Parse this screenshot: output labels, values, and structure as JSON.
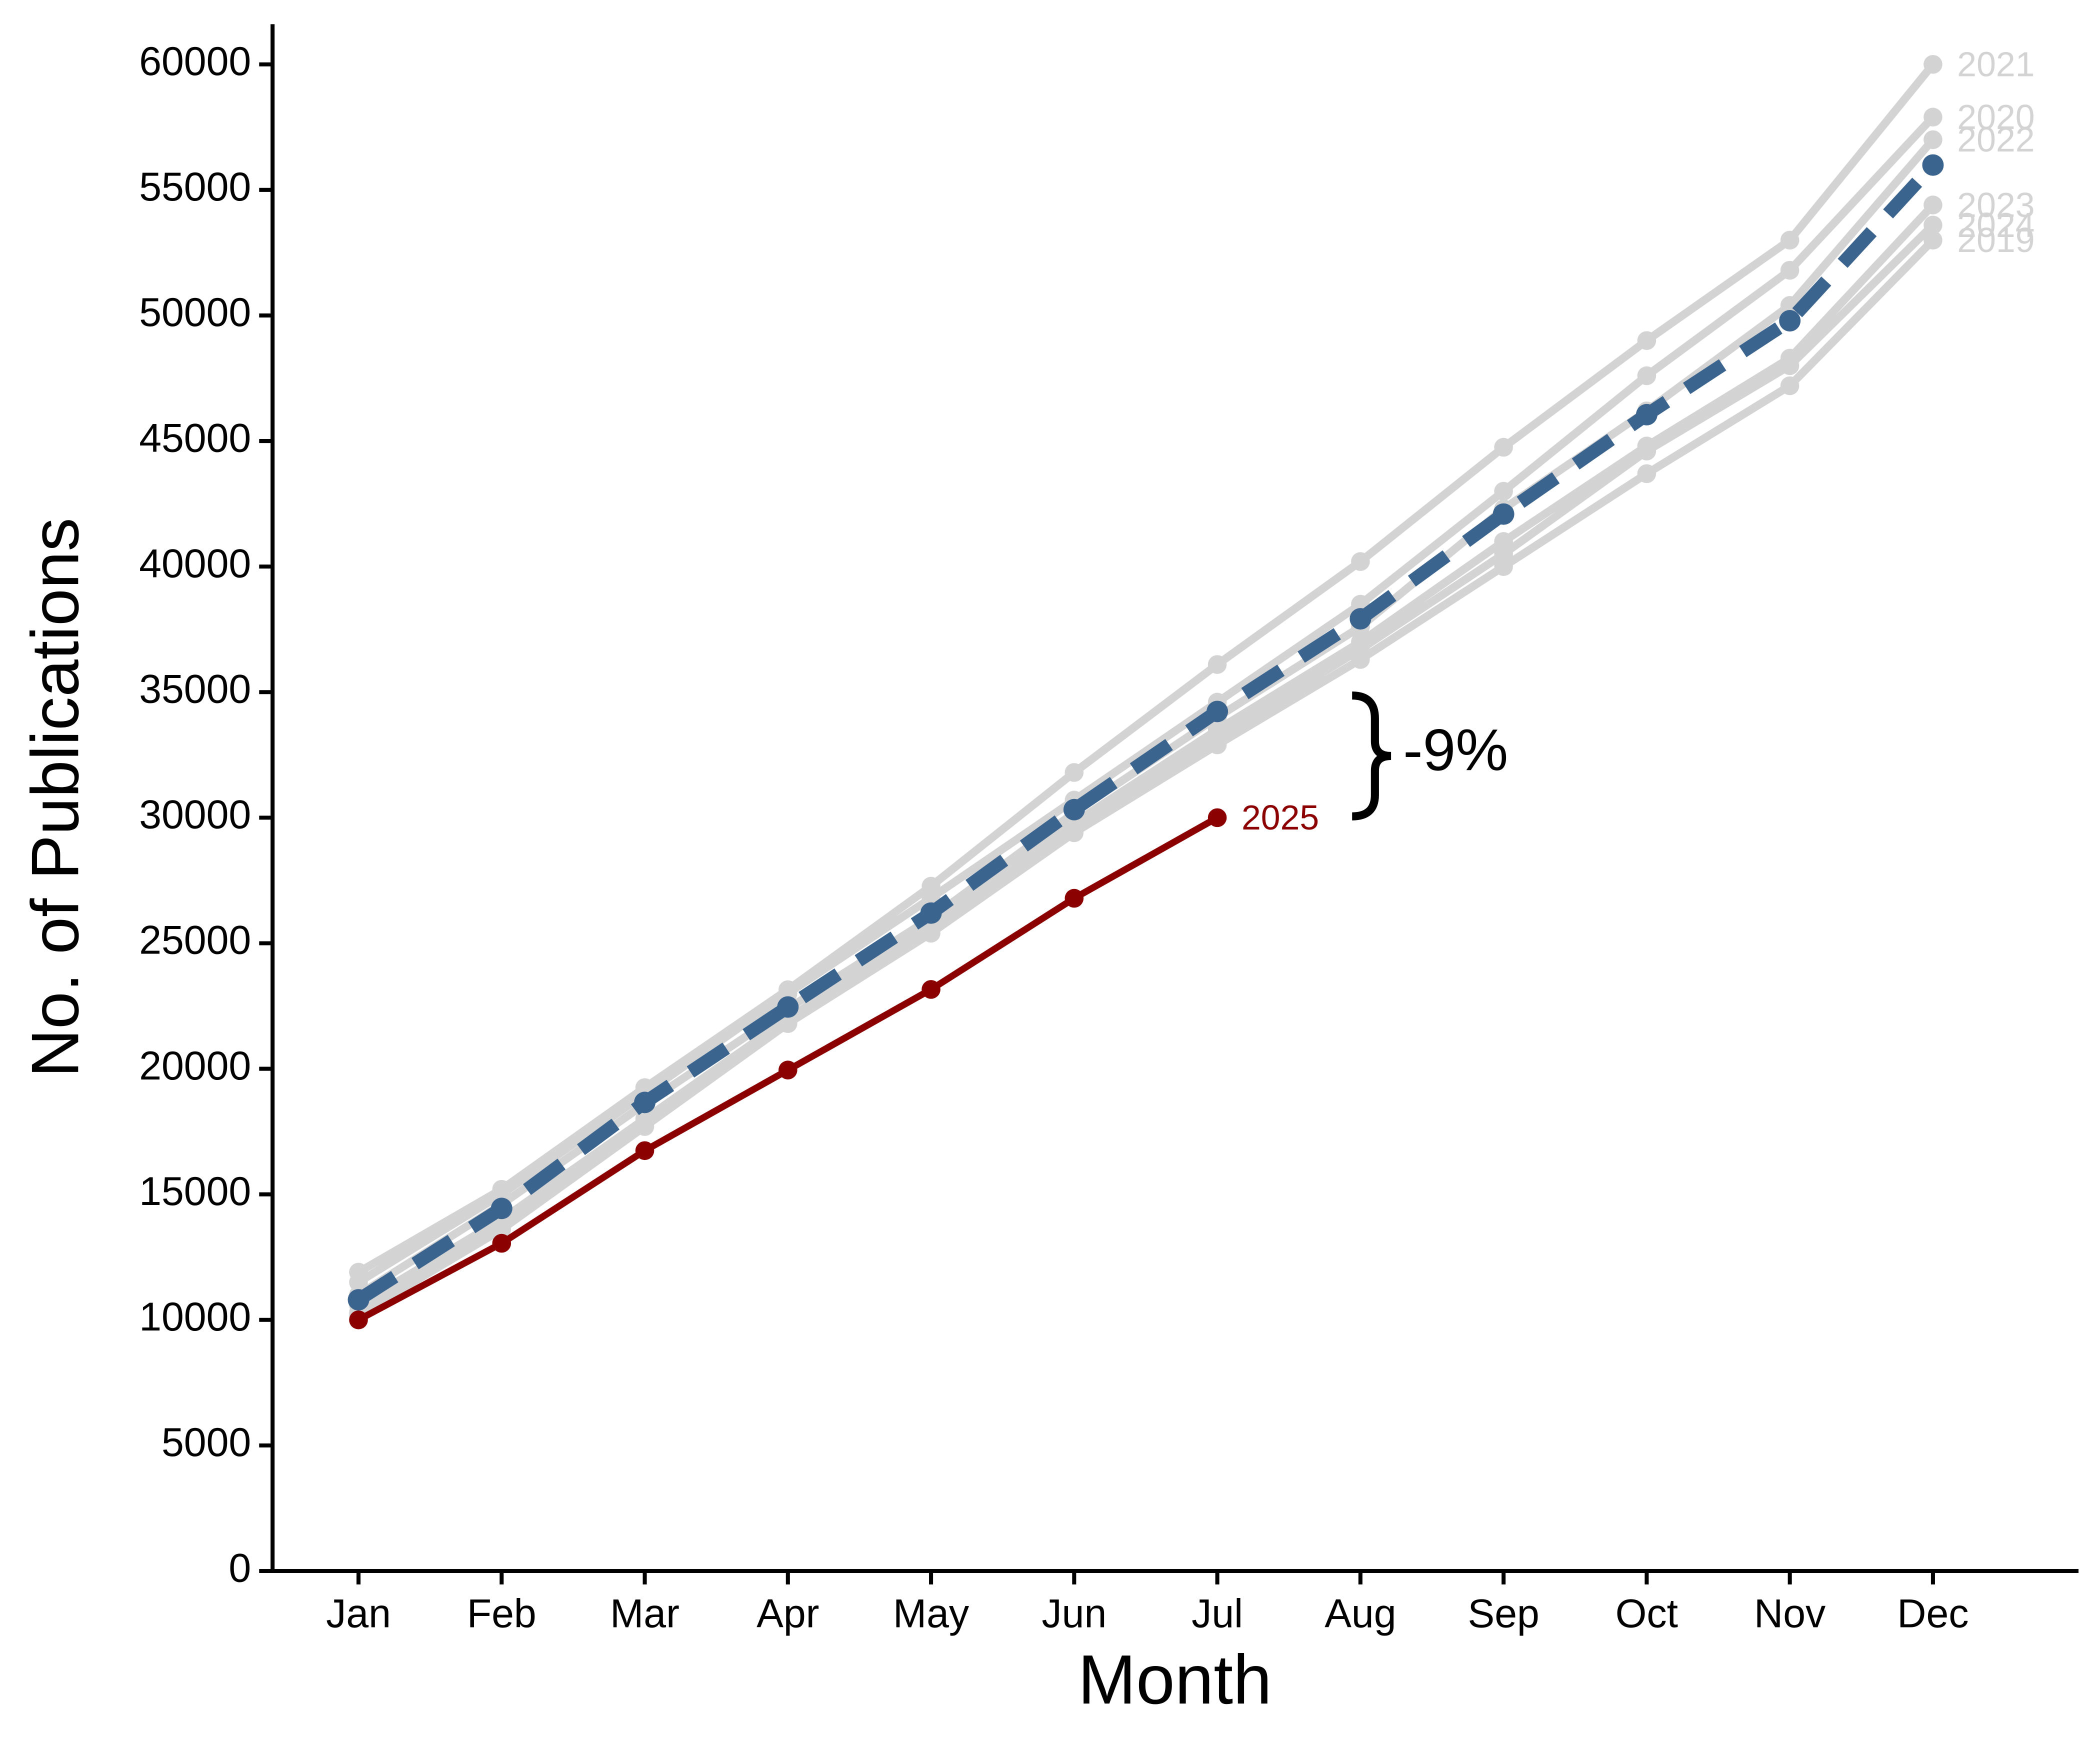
{
  "chart_data": {
    "type": "line",
    "x_label": "Month",
    "y_label": "No. of Publications",
    "annotation": "-9%",
    "categories": [
      "Jan",
      "Feb",
      "Mar",
      "Apr",
      "May",
      "Jun",
      "Jul",
      "Aug",
      "Sep",
      "Oct",
      "Nov",
      "Dec"
    ],
    "ylim": [
      0,
      61600
    ],
    "yticks": [
      0,
      5000,
      10000,
      15000,
      20000,
      25000,
      30000,
      35000,
      40000,
      45000,
      50000,
      55000,
      60000
    ],
    "series": [
      {
        "name": "2019",
        "color": "#d3d3d3",
        "values": [
          10200,
          13600,
          17700,
          21800,
          25400,
          29400,
          32900,
          36300,
          40000,
          43700,
          47200,
          53000
        ]
      },
      {
        "name": "2020",
        "color": "#d3d3d3",
        "values": [
          11500,
          15000,
          19000,
          23000,
          26800,
          30700,
          34600,
          38500,
          43000,
          47600,
          51800,
          57900
        ]
      },
      {
        "name": "2021",
        "color": "#d3d3d3",
        "values": [
          11900,
          15200,
          19250,
          23150,
          27270,
          31800,
          36100,
          40200,
          44750,
          49000,
          53000,
          60000
        ]
      },
      {
        "name": "2022",
        "color": "#d3d3d3",
        "values": [
          11000,
          14600,
          18600,
          22400,
          26000,
          30200,
          34000,
          37600,
          42300,
          46200,
          50400,
          57000
        ]
      },
      {
        "name": "2023",
        "color": "#d3d3d3",
        "values": [
          10600,
          14000,
          18000,
          22000,
          25700,
          29800,
          33500,
          37000,
          41000,
          44800,
          48300,
          54400
        ]
      },
      {
        "name": "2024",
        "color": "#d3d3d3",
        "values": [
          10300,
          13800,
          17900,
          21900,
          25600,
          29500,
          33200,
          36700,
          40500,
          44600,
          48000,
          53600
        ]
      },
      {
        "color": "#3a638d",
        "dashed": true,
        "values": [
          10800,
          14440,
          18660,
          22460,
          26200,
          30320,
          34230,
          37920,
          42090,
          46050,
          49790,
          55990
        ]
      },
      {
        "name": "2025",
        "color": "#8b0000",
        "values": [
          10000,
          13050,
          16740,
          19950,
          23160,
          26790,
          30000,
          null,
          null,
          null,
          null,
          null
        ]
      }
    ]
  }
}
